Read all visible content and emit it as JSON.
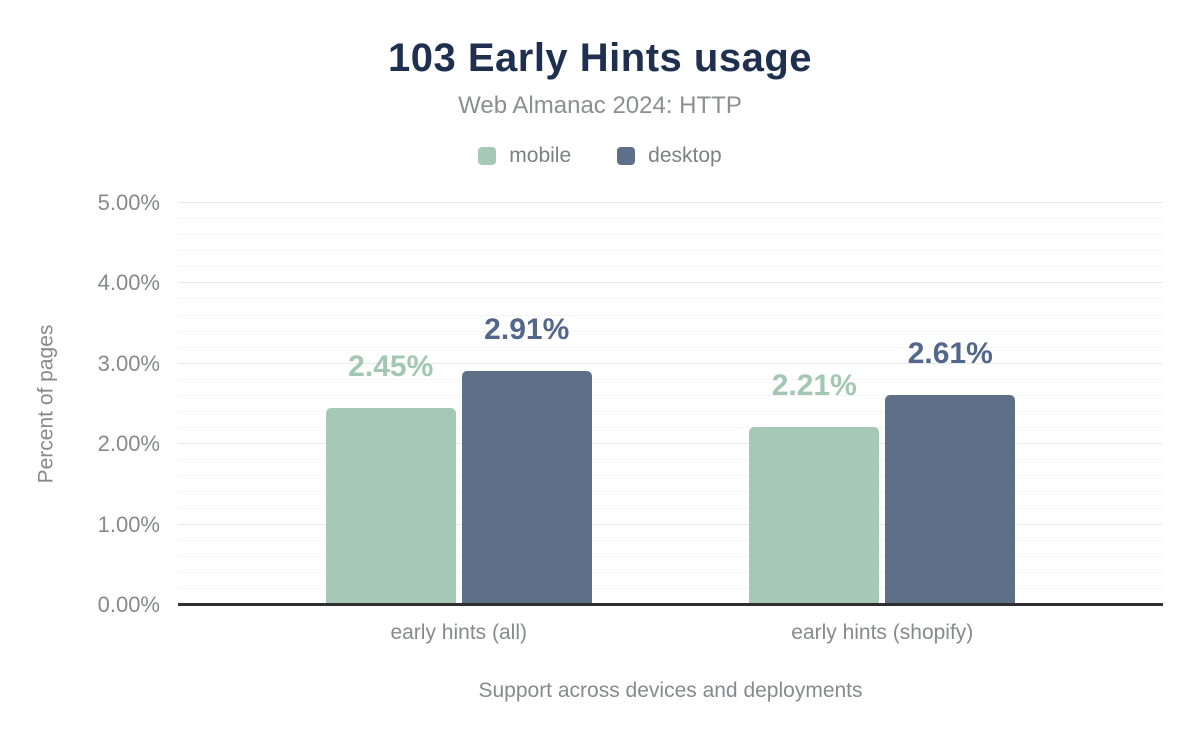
{
  "chart_data": {
    "type": "bar",
    "title": "103 Early Hints usage",
    "subtitle": "Web Almanac 2024: HTTP",
    "categories": [
      "early hints (all)",
      "early hints (shopify)"
    ],
    "series": [
      {
        "name": "mobile",
        "values": [
          2.45,
          2.21
        ],
        "value_labels": [
          "2.45%",
          "2.21%"
        ],
        "color": "#a6c9b6",
        "label_color": "#a2c7b3"
      },
      {
        "name": "desktop",
        "values": [
          2.91,
          2.61
        ],
        "value_labels": [
          "2.91%",
          "2.61%"
        ],
        "color": "#5e7088",
        "label_color": "#53678c"
      }
    ],
    "xlabel": "Support across devices and deployments",
    "ylabel": "Percent of pages",
    "ylim": [
      0,
      5
    ],
    "ytick_step_major": 1,
    "ytick_step_minor": 0.2,
    "ytick_labels": [
      "0.00%",
      "1.00%",
      "2.00%",
      "3.00%",
      "4.00%",
      "5.00%"
    ],
    "grid": true,
    "legend_position": "top"
  },
  "colors": {
    "title": "#1e2f4f",
    "subtitle": "#8c8e90",
    "axis_text": "#87898c",
    "legend_text": "#7e8083",
    "grid_major": "#e9e9e9",
    "grid_minor": "#f5f5f5",
    "baseline": "#2f2f2f",
    "background": "#ffffff"
  }
}
